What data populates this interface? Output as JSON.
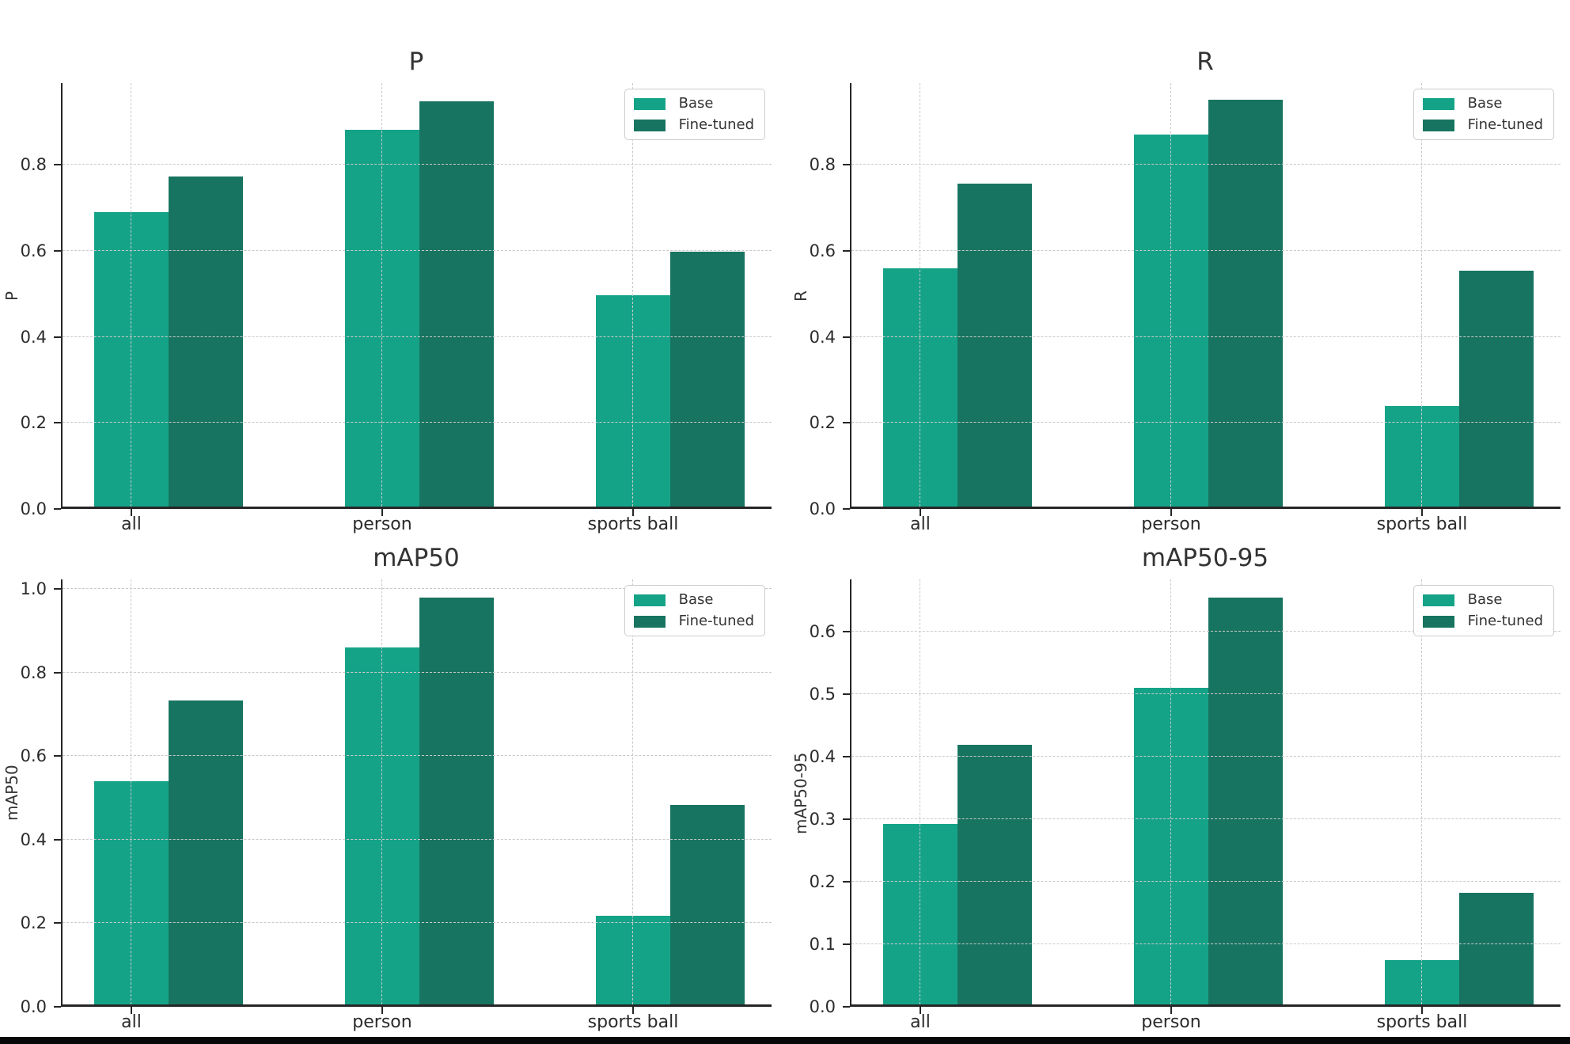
{
  "figure": {
    "background_color": "#ffffff",
    "grid_color": "#c9c9c9",
    "spine_color": "#262626",
    "text_color": "#333333",
    "bottom_strip_color": "#070709",
    "legend": {
      "base_label": "Base",
      "fine_tuned_label": "Fine-tuned"
    },
    "series_colors": {
      "base": "#15a388",
      "fine_tuned": "#177460"
    }
  },
  "chart_data": [
    {
      "type": "bar",
      "title": "P",
      "ylabel": "P",
      "xlabel": "",
      "categories": [
        "all",
        "person",
        "sports ball"
      ],
      "series": [
        {
          "name": "Base",
          "color": "#15a388",
          "values": [
            0.685,
            0.876,
            0.491
          ]
        },
        {
          "name": "Fine-tuned",
          "color": "#177460",
          "values": [
            0.768,
            0.943,
            0.592
          ]
        }
      ],
      "yticks": [
        "0.0",
        "0.2",
        "0.4",
        "0.6",
        "0.8"
      ],
      "ylim": [
        0,
        0.99
      ],
      "grid": "dashed",
      "legend_position": "upper right"
    },
    {
      "type": "bar",
      "title": "R",
      "ylabel": "R",
      "xlabel": "",
      "categories": [
        "all",
        "person",
        "sports ball"
      ],
      "series": [
        {
          "name": "Base",
          "color": "#15a388",
          "values": [
            0.553,
            0.865,
            0.233
          ]
        },
        {
          "name": "Fine-tuned",
          "color": "#177460",
          "values": [
            0.75,
            0.945,
            0.548
          ]
        }
      ],
      "yticks": [
        "0.0",
        "0.2",
        "0.4",
        "0.6",
        "0.8"
      ],
      "ylim": [
        0,
        0.99
      ],
      "grid": "dashed",
      "legend_position": "upper right"
    },
    {
      "type": "bar",
      "title": "mAP50",
      "ylabel": "mAP50",
      "xlabel": "",
      "categories": [
        "all",
        "person",
        "sports ball"
      ],
      "series": [
        {
          "name": "Base",
          "color": "#15a388",
          "values": [
            0.534,
            0.855,
            0.213
          ]
        },
        {
          "name": "Fine-tuned",
          "color": "#177460",
          "values": [
            0.727,
            0.974,
            0.478
          ]
        }
      ],
      "yticks": [
        "0.0",
        "0.2",
        "0.4",
        "0.6",
        "0.8",
        "1.0"
      ],
      "ylim": [
        0,
        1.023
      ],
      "grid": "dashed",
      "legend_position": "upper right"
    },
    {
      "type": "bar",
      "title": "mAP50-95",
      "ylabel": "mAP50-95",
      "xlabel": "",
      "categories": [
        "all",
        "person",
        "sports ball"
      ],
      "series": [
        {
          "name": "Base",
          "color": "#15a388",
          "values": [
            0.289,
            0.507,
            0.071
          ]
        },
        {
          "name": "Fine-tuned",
          "color": "#177460",
          "values": [
            0.415,
            0.651,
            0.179
          ]
        }
      ],
      "yticks": [
        "0.0",
        "0.1",
        "0.2",
        "0.3",
        "0.4",
        "0.5",
        "0.6"
      ],
      "ylim": [
        0,
        0.684
      ],
      "grid": "dashed",
      "legend_position": "upper right"
    }
  ]
}
